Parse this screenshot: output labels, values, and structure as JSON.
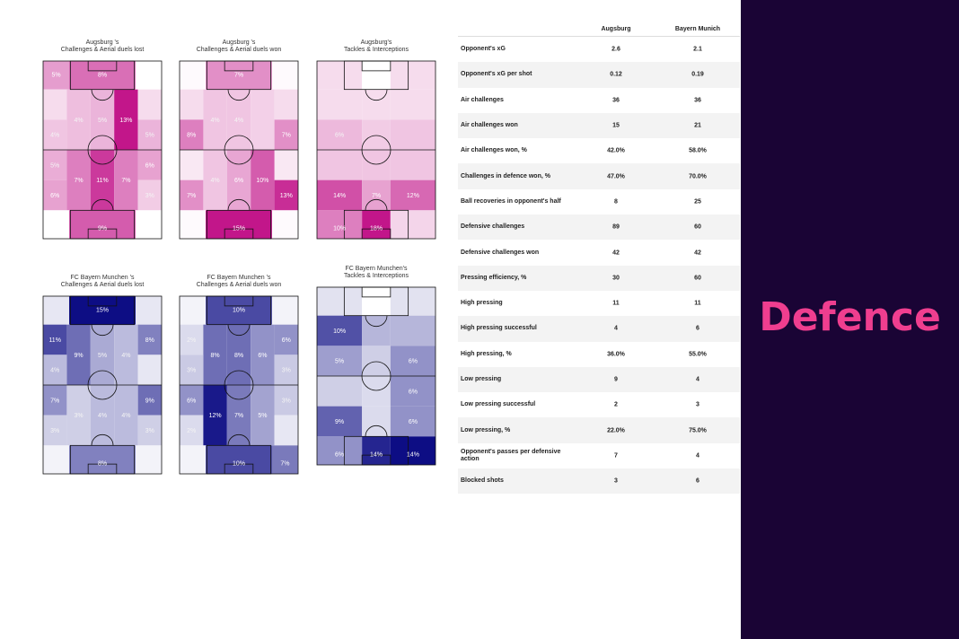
{
  "side_panel": {
    "title": "Defence",
    "background": "#1a0435",
    "title_color": "#ef3e8f"
  },
  "colors": {
    "augsburg": "#c2168a",
    "bayern": "#0d0d84"
  },
  "chart_data": [
    {
      "type": "heatmap",
      "title": "Augsburg 's\nChallenges & Aerial duels lost",
      "team": "augsburg",
      "cells": [
        {
          "zone": "top-left",
          "label": "5%",
          "intensity": 0.42
        },
        {
          "zone": "top-box",
          "label": "8%",
          "intensity": 0.62
        },
        {
          "zone": "top-right",
          "label": "",
          "intensity": 0.0
        },
        {
          "zone": "r1-far-left",
          "label": "",
          "intensity": 0.15
        },
        {
          "zone": "r1-left",
          "label": "4%",
          "intensity": 0.28
        },
        {
          "zone": "r1-center",
          "label": "5%",
          "intensity": 0.32
        },
        {
          "zone": "r1-right",
          "label": "13%",
          "intensity": 1.0
        },
        {
          "zone": "r1-far-right",
          "label": "",
          "intensity": 0.15
        },
        {
          "zone": "r2-far-left",
          "label": "4%",
          "intensity": 0.25
        },
        {
          "zone": "r2-far-right",
          "label": "5%",
          "intensity": 0.32
        },
        {
          "zone": "r3-far-left",
          "label": "5%",
          "intensity": 0.35
        },
        {
          "zone": "r3-far-right",
          "label": "6%",
          "intensity": 0.4
        },
        {
          "zone": "r4-far-left",
          "label": "6%",
          "intensity": 0.4
        },
        {
          "zone": "r4-left",
          "label": "7%",
          "intensity": 0.55
        },
        {
          "zone": "r4-center",
          "label": "11%",
          "intensity": 0.85
        },
        {
          "zone": "r4-right",
          "label": "7%",
          "intensity": 0.55
        },
        {
          "zone": "r4-far-right",
          "label": "3%",
          "intensity": 0.22
        },
        {
          "zone": "bottom-left",
          "label": "",
          "intensity": 0.0
        },
        {
          "zone": "bottom-box",
          "label": "9%",
          "intensity": 0.7
        },
        {
          "zone": "bottom-right",
          "label": "",
          "intensity": 0.0
        }
      ]
    },
    {
      "type": "heatmap",
      "title": "Augsburg 's\nChallenges & Aerial duels won",
      "team": "augsburg",
      "cells": [
        {
          "zone": "top-left",
          "label": "",
          "intensity": 0.02
        },
        {
          "zone": "top-box",
          "label": "7%",
          "intensity": 0.48
        },
        {
          "zone": "top-right",
          "label": "",
          "intensity": 0.02
        },
        {
          "zone": "r1-far-left",
          "label": "",
          "intensity": 0.15
        },
        {
          "zone": "r1-left",
          "label": "4%",
          "intensity": 0.25
        },
        {
          "zone": "r1-center",
          "label": "4%",
          "intensity": 0.25
        },
        {
          "zone": "r1-right",
          "label": "",
          "intensity": 0.2
        },
        {
          "zone": "r1-far-right",
          "label": "",
          "intensity": 0.15
        },
        {
          "zone": "r2-far-left",
          "label": "8%",
          "intensity": 0.55
        },
        {
          "zone": "r2-far-right",
          "label": "7%",
          "intensity": 0.48
        },
        {
          "zone": "r3-far-left",
          "label": "",
          "intensity": 0.1
        },
        {
          "zone": "r3-far-right",
          "label": "",
          "intensity": 0.1
        },
        {
          "zone": "r4-far-left",
          "label": "7%",
          "intensity": 0.48
        },
        {
          "zone": "r4-left",
          "label": "4%",
          "intensity": 0.25
        },
        {
          "zone": "r4-center",
          "label": "6%",
          "intensity": 0.38
        },
        {
          "zone": "r4-right",
          "label": "10%",
          "intensity": 0.7
        },
        {
          "zone": "r4-far-right",
          "label": "13%",
          "intensity": 0.9
        },
        {
          "zone": "bottom-left",
          "label": "",
          "intensity": 0.02
        },
        {
          "zone": "bottom-box",
          "label": "15%",
          "intensity": 1.0
        },
        {
          "zone": "bottom-right",
          "label": "",
          "intensity": 0.02
        }
      ]
    },
    {
      "type": "heatmap",
      "title": "Augsburg's\nTackles & Interceptions",
      "team": "augsburg",
      "layout": "six-rows",
      "cells": [
        {
          "zone": "top-left",
          "label": "",
          "intensity": 0.15
        },
        {
          "zone": "top-box",
          "label": "",
          "intensity": 0.0
        },
        {
          "zone": "top-right",
          "label": "",
          "intensity": 0.15
        },
        {
          "zone": "r1-left",
          "label": "",
          "intensity": 0.15
        },
        {
          "zone": "r1-center",
          "label": "",
          "intensity": 0.15
        },
        {
          "zone": "r1-right",
          "label": "",
          "intensity": 0.15
        },
        {
          "zone": "r2-left",
          "label": "6%",
          "intensity": 0.3
        },
        {
          "zone": "r2-center",
          "label": "",
          "intensity": 0.22
        },
        {
          "zone": "r2-right",
          "label": "",
          "intensity": 0.25
        },
        {
          "zone": "r3-left",
          "label": "",
          "intensity": 0.25
        },
        {
          "zone": "r3-center",
          "label": "",
          "intensity": 0.25
        },
        {
          "zone": "r3-right",
          "label": "",
          "intensity": 0.25
        },
        {
          "zone": "r4-left",
          "label": "14%",
          "intensity": 0.75
        },
        {
          "zone": "r4-center",
          "label": "7%",
          "intensity": 0.4
        },
        {
          "zone": "r4-right",
          "label": "12%",
          "intensity": 0.65
        },
        {
          "zone": "bottom-left",
          "label": "10%",
          "intensity": 0.55
        },
        {
          "zone": "bottom-box",
          "label": "18%",
          "intensity": 1.0
        },
        {
          "zone": "bottom-right",
          "label": "",
          "intensity": 0.18
        }
      ]
    },
    {
      "type": "heatmap",
      "title": "FC Bayern Munchen 's\nChallenges & Aerial duels lost",
      "team": "bayern",
      "cells": [
        {
          "zone": "top-left",
          "label": "",
          "intensity": 0.1
        },
        {
          "zone": "top-box",
          "label": "15%",
          "intensity": 1.0
        },
        {
          "zone": "top-right",
          "label": "",
          "intensity": 0.1
        },
        {
          "zone": "r1-far-left",
          "label": "11%",
          "intensity": 0.75
        },
        {
          "zone": "r1-left",
          "label": "9%",
          "intensity": 0.6
        },
        {
          "zone": "r1-center",
          "label": "5%",
          "intensity": 0.35
        },
        {
          "zone": "r1-right",
          "label": "4%",
          "intensity": 0.28
        },
        {
          "zone": "r1-far-right",
          "label": "8%",
          "intensity": 0.52
        },
        {
          "zone": "r2-far-left",
          "label": "4%",
          "intensity": 0.28
        },
        {
          "zone": "r2-far-right",
          "label": "",
          "intensity": 0.1
        },
        {
          "zone": "r3-far-left",
          "label": "7%",
          "intensity": 0.45
        },
        {
          "zone": "r3-far-right",
          "label": "9%",
          "intensity": 0.6
        },
        {
          "zone": "r4-far-left",
          "label": "3%",
          "intensity": 0.2
        },
        {
          "zone": "r4-left",
          "label": "3%",
          "intensity": 0.2
        },
        {
          "zone": "r4-center",
          "label": "4%",
          "intensity": 0.28
        },
        {
          "zone": "r4-right",
          "label": "4%",
          "intensity": 0.28
        },
        {
          "zone": "r4-far-right",
          "label": "3%",
          "intensity": 0.2
        },
        {
          "zone": "bottom-left",
          "label": "",
          "intensity": 0.05
        },
        {
          "zone": "bottom-box",
          "label": "8%",
          "intensity": 0.52
        },
        {
          "zone": "bottom-right",
          "label": "",
          "intensity": 0.05
        }
      ]
    },
    {
      "type": "heatmap",
      "title": "FC Bayern Munchen 's\nChallenges & Aerial duels won",
      "team": "bayern",
      "cells": [
        {
          "zone": "top-left",
          "label": "",
          "intensity": 0.05
        },
        {
          "zone": "top-box",
          "label": "10%",
          "intensity": 0.75
        },
        {
          "zone": "top-right",
          "label": "",
          "intensity": 0.05
        },
        {
          "zone": "r1-far-left",
          "label": "2%",
          "intensity": 0.15
        },
        {
          "zone": "r1-left",
          "label": "8%",
          "intensity": 0.6
        },
        {
          "zone": "r1-center",
          "label": "8%",
          "intensity": 0.6
        },
        {
          "zone": "r1-right",
          "label": "6%",
          "intensity": 0.45
        },
        {
          "zone": "r1-far-right",
          "label": "6%",
          "intensity": 0.45
        },
        {
          "zone": "r2-far-left",
          "label": "3%",
          "intensity": 0.22
        },
        {
          "zone": "r2-far-right",
          "label": "3%",
          "intensity": 0.22
        },
        {
          "zone": "r3-far-left",
          "label": "6%",
          "intensity": 0.45
        },
        {
          "zone": "r3-far-right",
          "label": "3%",
          "intensity": 0.22
        },
        {
          "zone": "r4-far-left",
          "label": "2%",
          "intensity": 0.15
        },
        {
          "zone": "r4-left",
          "label": "12%",
          "intensity": 0.95
        },
        {
          "zone": "r4-center",
          "label": "7%",
          "intensity": 0.55
        },
        {
          "zone": "r4-right",
          "label": "5%",
          "intensity": 0.38
        },
        {
          "zone": "r4-far-right",
          "label": "",
          "intensity": 0.1
        },
        {
          "zone": "bottom-left",
          "label": "",
          "intensity": 0.05
        },
        {
          "zone": "bottom-box",
          "label": "10%",
          "intensity": 0.75
        },
        {
          "zone": "bottom-right",
          "label": "7%",
          "intensity": 0.55
        }
      ]
    },
    {
      "type": "heatmap",
      "title": "FC Bayern Munchen's\nTackles & Interceptions",
      "team": "bayern",
      "layout": "six-rows",
      "cells": [
        {
          "zone": "top-left",
          "label": "",
          "intensity": 0.12
        },
        {
          "zone": "top-box",
          "label": "",
          "intensity": 0.0
        },
        {
          "zone": "top-right",
          "label": "",
          "intensity": 0.12
        },
        {
          "zone": "r1-left",
          "label": "10%",
          "intensity": 0.72
        },
        {
          "zone": "r1-center",
          "label": "",
          "intensity": 0.3
        },
        {
          "zone": "r1-right",
          "label": "",
          "intensity": 0.3
        },
        {
          "zone": "r2-left",
          "label": "5%",
          "intensity": 0.4
        },
        {
          "zone": "r2-center",
          "label": "",
          "intensity": 0.2
        },
        {
          "zone": "r2-right",
          "label": "6%",
          "intensity": 0.45
        },
        {
          "zone": "r3-left",
          "label": "",
          "intensity": 0.2
        },
        {
          "zone": "r3-center",
          "label": "",
          "intensity": 0.15
        },
        {
          "zone": "r3-right",
          "label": "6%",
          "intensity": 0.45
        },
        {
          "zone": "r4-left",
          "label": "9%",
          "intensity": 0.65
        },
        {
          "zone": "r4-center",
          "label": "",
          "intensity": 0.15
        },
        {
          "zone": "r4-right",
          "label": "6%",
          "intensity": 0.45
        },
        {
          "zone": "bottom-left",
          "label": "6%",
          "intensity": 0.45
        },
        {
          "zone": "bottom-box",
          "label": "14%",
          "intensity": 0.9
        },
        {
          "zone": "bottom-right",
          "label": "14%",
          "intensity": 1.0
        }
      ]
    }
  ],
  "table": {
    "columns": [
      "Augsburg",
      "Bayern Munich"
    ],
    "rows": [
      {
        "label": "Opponent's xG",
        "augsburg": "2.6",
        "bayern": "2.1"
      },
      {
        "label": "Opponent's xG per shot",
        "augsburg": "0.12",
        "bayern": "0.19"
      },
      {
        "label": "Air challenges",
        "augsburg": "36",
        "bayern": "36"
      },
      {
        "label": "Air challenges won",
        "augsburg": "15",
        "bayern": "21"
      },
      {
        "label": "Air challenges won, %",
        "augsburg": "42.0%",
        "bayern": "58.0%"
      },
      {
        "label": "Challenges in defence won, %",
        "augsburg": "47.0%",
        "bayern": "70.0%"
      },
      {
        "label": "Ball recoveries in opponent's half",
        "augsburg": "8",
        "bayern": "25"
      },
      {
        "label": "Defensive challenges",
        "augsburg": "89",
        "bayern": "60"
      },
      {
        "label": "Defensive challenges won",
        "augsburg": "42",
        "bayern": "42"
      },
      {
        "label": "Pressing efficiency, %",
        "augsburg": "30",
        "bayern": "60"
      },
      {
        "label": "High pressing",
        "augsburg": "11",
        "bayern": "11"
      },
      {
        "label": "High pressing successful",
        "augsburg": "4",
        "bayern": "6"
      },
      {
        "label": "High pressing, %",
        "augsburg": "36.0%",
        "bayern": "55.0%"
      },
      {
        "label": "Low pressing",
        "augsburg": "9",
        "bayern": "4"
      },
      {
        "label": "Low pressing successful",
        "augsburg": "2",
        "bayern": "3"
      },
      {
        "label": "Low pressing, %",
        "augsburg": "22.0%",
        "bayern": "75.0%"
      },
      {
        "label": "Opponent's passes per defensive action",
        "augsburg": "7",
        "bayern": "4"
      },
      {
        "label": "Blocked shots",
        "augsburg": "3",
        "bayern": "6"
      }
    ]
  }
}
